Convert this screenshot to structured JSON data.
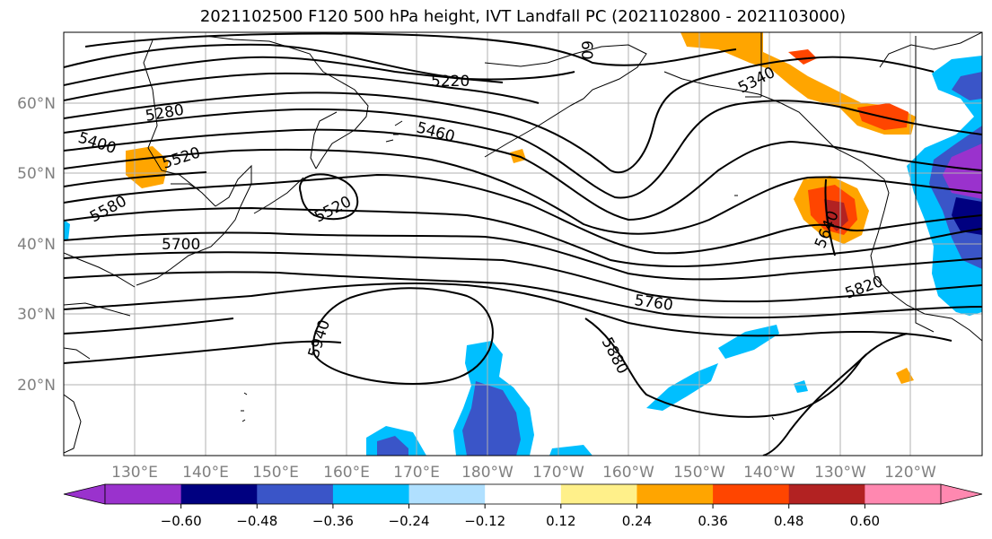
{
  "title": "2021102500 F120 500 hPa height, IVT Landfall PC (2021102800 - 2021103000)",
  "map": {
    "lon_labels": [
      "130°E",
      "140°E",
      "150°E",
      "160°E",
      "170°E",
      "180°W",
      "170°W",
      "160°W",
      "150°W",
      "140°W",
      "130°W",
      "120°W"
    ],
    "lat_labels": [
      "60°N",
      "50°N",
      "40°N",
      "30°N",
      "20°N"
    ],
    "contour_labels": [
      "5220",
      "5280",
      "5400",
      "5520",
      "5460",
      "5340",
      "5520",
      "5580",
      "5700",
      "5640",
      "5760",
      "5820",
      "5940",
      "5880",
      "60"
    ],
    "colors": {
      "fill_strong_neg": "#9a32cd",
      "fill_neg": "#3a55c8",
      "fill_weak_neg": "#00bfff",
      "fill_pos": "#ffa500",
      "fill_strong_pos": "#ff4500",
      "fill_very_strong_pos": "#b22222"
    }
  },
  "colorbar": {
    "colors": [
      "#9a32cd",
      "#000080",
      "#3a55c8",
      "#00bfff",
      "#b0e0ff",
      "#ffffff",
      "#fff08a",
      "#ffa500",
      "#ff4500",
      "#b22222",
      "#ff88b0"
    ],
    "tick_labels": [
      "−0.60",
      "−0.48",
      "−0.36",
      "−0.24",
      "−0.12",
      "0.12",
      "0.24",
      "0.36",
      "0.48",
      "0.60"
    ]
  }
}
